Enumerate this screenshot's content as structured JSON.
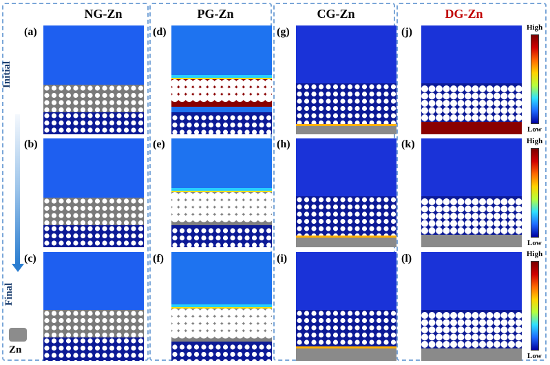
{
  "columns": [
    {
      "title": "NG-Zn",
      "color": "#000000",
      "panels": [
        "(a)",
        "(b)",
        "(c)"
      ],
      "scheme": "ng"
    },
    {
      "title": "PG-Zn",
      "color": "#000000",
      "panels": [
        "(d)",
        "(e)",
        "(f)"
      ],
      "scheme": "pg"
    },
    {
      "title": "CG-Zn",
      "color": "#000000",
      "panels": [
        "(g)",
        "(h)",
        "(i)"
      ],
      "scheme": "cg"
    },
    {
      "title": "DG-Zn",
      "color": "#c00000",
      "panels": [
        "(j)",
        "(k)",
        "(l)"
      ],
      "scheme": "dg"
    }
  ],
  "time_axis": {
    "start": "Initial",
    "end": "Final"
  },
  "legend": {
    "label": "Zn",
    "color": "#8c8c8c"
  },
  "colorbar": {
    "high": "High",
    "low": "Low"
  }
}
